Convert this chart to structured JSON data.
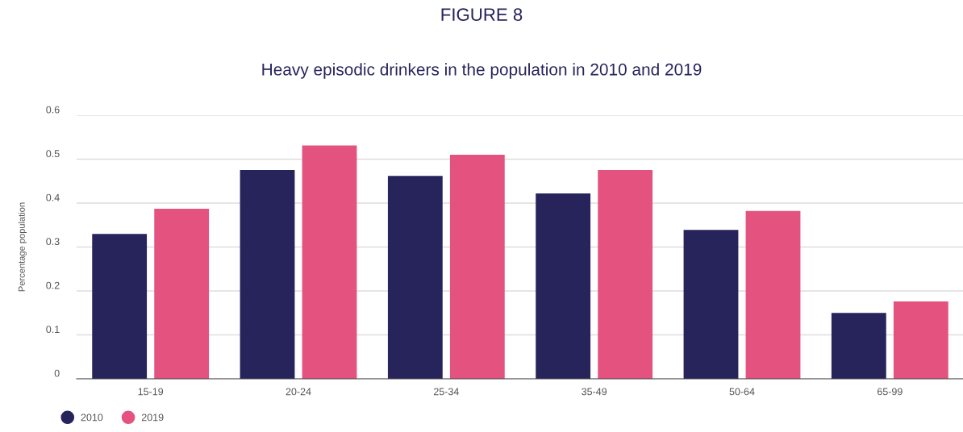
{
  "chart_data": {
    "type": "bar",
    "title": "FIGURE 8",
    "subtitle": "Heavy episodic drinkers in the population in 2010 and 2019",
    "ylabel": "Percentage population",
    "categories": [
      "15-19",
      "20-24",
      "25-34",
      "35-49",
      "50-64",
      "65-99"
    ],
    "series": [
      {
        "name": "2010",
        "color": "#27245c",
        "values": [
          0.33,
          0.475,
          0.462,
          0.422,
          0.339,
          0.15
        ]
      },
      {
        "name": "2019",
        "color": "#e4537f",
        "values": [
          0.387,
          0.531,
          0.51,
          0.475,
          0.382,
          0.176
        ]
      }
    ],
    "ylim": [
      0,
      0.6
    ],
    "yticks": [
      0,
      0.1,
      0.2,
      0.3,
      0.4,
      0.5,
      0.6
    ],
    "grid": "y",
    "legend": "bottom left"
  }
}
